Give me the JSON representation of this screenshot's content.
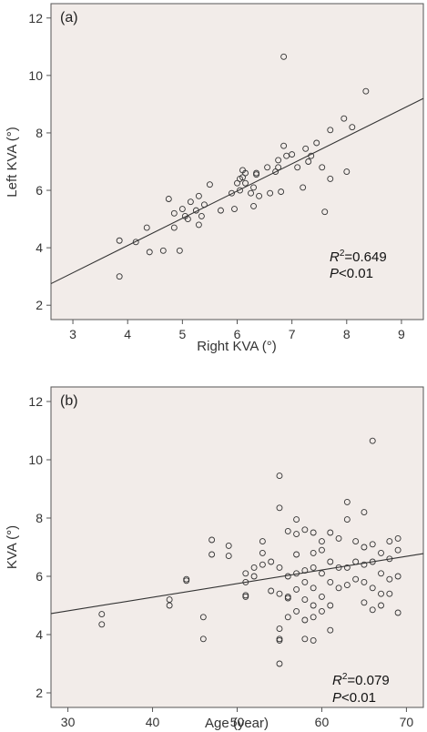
{
  "chart_data": [
    {
      "type": "scatter",
      "panel_label": "(a)",
      "xlabel": "Right KVA (°)",
      "ylabel": "Left KVA (°)",
      "xlim": [
        2.6,
        9.4
      ],
      "ylim": [
        1.5,
        12.5
      ],
      "xticks": [
        "3",
        "4",
        "5",
        "6",
        "7",
        "8",
        "9"
      ],
      "yticks": [
        "2",
        "4",
        "6",
        "8",
        "10",
        "12"
      ],
      "background": "#f2ece9",
      "marker_color": "#333333",
      "fit_line": {
        "x": [
          2.6,
          9.4
        ],
        "y": [
          2.75,
          9.2
        ]
      },
      "annotation": {
        "r2_prefix": "R",
        "r2_sup": "2",
        "r2_value": "=0.649",
        "p_prefix": "P",
        "p_value": "<0.01"
      },
      "points": {
        "x": [
          3.85,
          3.85,
          4.15,
          4.35,
          4.4,
          4.65,
          4.75,
          4.85,
          4.85,
          4.95,
          5.0,
          5.05,
          5.1,
          5.15,
          5.25,
          5.3,
          5.3,
          5.35,
          5.4,
          5.5,
          5.7,
          5.9,
          5.95,
          6.0,
          6.05,
          6.05,
          6.1,
          6.1,
          6.15,
          6.15,
          6.25,
          6.3,
          6.3,
          6.35,
          6.35,
          6.4,
          6.55,
          6.6,
          6.7,
          6.75,
          6.75,
          6.8,
          6.85,
          6.85,
          6.9,
          7.0,
          7.1,
          7.2,
          7.25,
          7.3,
          7.35,
          7.45,
          7.55,
          7.6,
          7.7,
          7.7,
          7.95,
          8.0,
          8.1,
          8.35
        ],
        "y": [
          4.25,
          3.0,
          4.2,
          4.7,
          3.85,
          3.9,
          5.7,
          4.7,
          5.2,
          3.9,
          5.35,
          5.1,
          5.0,
          5.6,
          5.3,
          5.8,
          4.8,
          5.1,
          5.5,
          6.2,
          5.3,
          5.9,
          5.35,
          6.25,
          6.0,
          6.4,
          6.7,
          6.45,
          6.6,
          6.25,
          5.9,
          5.45,
          6.1,
          6.55,
          6.6,
          5.8,
          6.8,
          5.9,
          6.65,
          6.8,
          7.05,
          5.95,
          7.55,
          10.65,
          7.2,
          7.25,
          6.8,
          6.1,
          7.45,
          7.0,
          7.2,
          7.65,
          6.8,
          5.25,
          6.4,
          8.1,
          8.5,
          6.65,
          8.2,
          9.45
        ]
      }
    },
    {
      "type": "scatter",
      "panel_label": "(b)",
      "xlabel": "Age (year)",
      "ylabel": "KVA (°)",
      "xlim": [
        28,
        72
      ],
      "ylim": [
        1.5,
        12.5
      ],
      "xticks": [
        "30",
        "40",
        "50",
        "60",
        "70"
      ],
      "yticks": [
        "2",
        "4",
        "6",
        "8",
        "10",
        "12"
      ],
      "background": "#f2ece9",
      "marker_color": "#333333",
      "fit_line": {
        "x": [
          28,
          72
        ],
        "y": [
          4.72,
          6.78
        ]
      },
      "annotation": {
        "r2_prefix": "R",
        "r2_sup": "2",
        "r2_value": "=0.079",
        "p_prefix": "P",
        "p_value": "<0.01"
      },
      "points": {
        "x": [
          34,
          34,
          42,
          42,
          44,
          44,
          46,
          46,
          47,
          47,
          49,
          49,
          51,
          51,
          51,
          51,
          52,
          52,
          53,
          53,
          53,
          54,
          54,
          55,
          55,
          55,
          55,
          55,
          55,
          55,
          55,
          56,
          56,
          56,
          56,
          56,
          57,
          57,
          57,
          57,
          57,
          57,
          58,
          58,
          58,
          58,
          58,
          58,
          59,
          59,
          59,
          59,
          59,
          59,
          59,
          60,
          60,
          60,
          60,
          60,
          61,
          61,
          61,
          61,
          61,
          62,
          62,
          62,
          63,
          63,
          63,
          63,
          64,
          64,
          64,
          65,
          65,
          65,
          65,
          65,
          66,
          66,
          66,
          66,
          66,
          67,
          67,
          67,
          67,
          68,
          68,
          68,
          68,
          69,
          69,
          69,
          69
        ],
        "y": [
          4.7,
          4.35,
          5.2,
          5.0,
          5.9,
          5.85,
          4.6,
          3.85,
          7.25,
          6.75,
          7.05,
          6.7,
          6.1,
          5.8,
          5.3,
          5.35,
          6.3,
          6.0,
          7.2,
          6.8,
          6.4,
          6.5,
          5.5,
          9.45,
          8.35,
          6.3,
          5.4,
          4.2,
          3.85,
          3.8,
          3.0,
          7.55,
          6.0,
          5.3,
          5.25,
          4.6,
          7.95,
          7.45,
          6.75,
          6.1,
          5.55,
          4.8,
          7.6,
          6.2,
          5.8,
          5.2,
          4.5,
          3.85,
          7.5,
          6.8,
          6.3,
          5.6,
          5.0,
          4.6,
          3.8,
          7.2,
          6.9,
          6.1,
          5.3,
          4.8,
          7.5,
          6.5,
          5.8,
          5.0,
          4.15,
          7.3,
          6.3,
          5.6,
          8.55,
          7.95,
          6.3,
          5.7,
          7.2,
          6.5,
          5.9,
          8.2,
          7.0,
          6.4,
          5.8,
          5.1,
          10.65,
          7.1,
          6.5,
          5.6,
          4.85,
          6.8,
          6.1,
          5.4,
          5.0,
          7.2,
          6.6,
          5.9,
          5.4,
          7.3,
          6.9,
          6.0,
          4.75
        ]
      }
    }
  ]
}
